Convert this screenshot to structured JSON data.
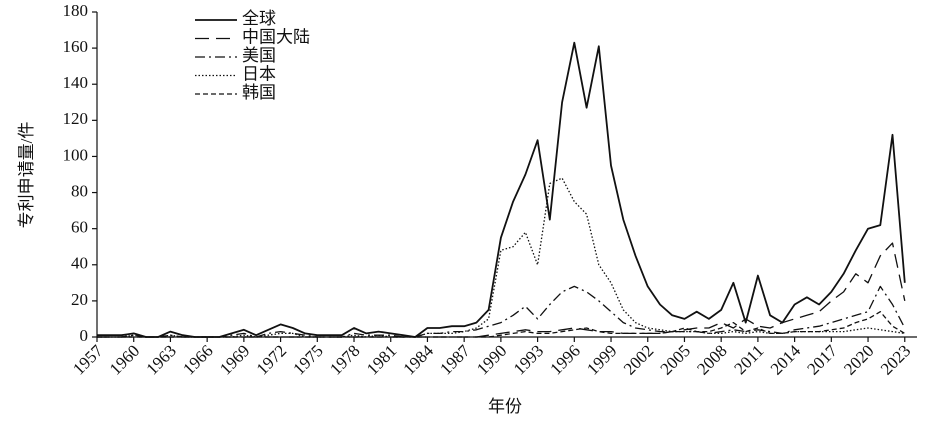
{
  "chart_data": {
    "type": "line",
    "x_label": "年份",
    "y_label": "专利申请量/件",
    "x": [
      1957,
      1958,
      1959,
      1960,
      1961,
      1962,
      1963,
      1964,
      1965,
      1966,
      1967,
      1968,
      1969,
      1970,
      1971,
      1972,
      1973,
      1974,
      1975,
      1976,
      1977,
      1978,
      1979,
      1980,
      1981,
      1982,
      1983,
      1984,
      1985,
      1986,
      1987,
      1988,
      1989,
      1990,
      1991,
      1992,
      1993,
      1994,
      1995,
      1996,
      1997,
      1998,
      1999,
      2000,
      2001,
      2002,
      2003,
      2004,
      2005,
      2006,
      2007,
      2008,
      2009,
      2010,
      2011,
      2012,
      2013,
      2014,
      2015,
      2016,
      2017,
      2018,
      2019,
      2020,
      2021,
      2022,
      2023
    ],
    "xlim": [
      1957,
      2024
    ],
    "xticks": [
      1957,
      1960,
      1963,
      1966,
      1969,
      1972,
      1975,
      1978,
      1981,
      1984,
      1987,
      1990,
      1993,
      1996,
      1999,
      2002,
      2005,
      2008,
      2011,
      2014,
      2017,
      2020,
      2023
    ],
    "ylim": [
      0,
      180
    ],
    "yticks": [
      0,
      20,
      40,
      60,
      80,
      100,
      120,
      140,
      160,
      180
    ],
    "legend": "upper-left",
    "series": [
      {
        "name": "全球",
        "color": "#111111",
        "dash": "none",
        "values": [
          1,
          1,
          1,
          2,
          0,
          0,
          3,
          1,
          0,
          0,
          0,
          2,
          4,
          1,
          4,
          7,
          5,
          2,
          1,
          1,
          1,
          5,
          2,
          3,
          2,
          1,
          0,
          5,
          5,
          6,
          6,
          8,
          15,
          55,
          75,
          90,
          109,
          65,
          130,
          163,
          127,
          161,
          95,
          65,
          45,
          28,
          18,
          12,
          10,
          14,
          10,
          15,
          30,
          8,
          34,
          12,
          8,
          18,
          22,
          18,
          25,
          35,
          48,
          60,
          62,
          112,
          30
        ]
      },
      {
        "name": "中国大陆",
        "color": "#111111",
        "dash": "14,7",
        "values": [
          0,
          0,
          0,
          0,
          0,
          0,
          0,
          0,
          0,
          0,
          0,
          0,
          0,
          0,
          0,
          0,
          0,
          0,
          0,
          0,
          0,
          0,
          0,
          0,
          0,
          0,
          0,
          0,
          0,
          0,
          0,
          0,
          1,
          2,
          3,
          4,
          3,
          3,
          4,
          5,
          4,
          3,
          3,
          2,
          2,
          2,
          2,
          3,
          4,
          5,
          5,
          8,
          5,
          10,
          6,
          5,
          8,
          10,
          12,
          14,
          20,
          25,
          35,
          30,
          45,
          52,
          20
        ]
      },
      {
        "name": "美国",
        "color": "#111111",
        "dash": "10,4,2,4",
        "values": [
          0,
          0,
          0,
          1,
          0,
          0,
          1,
          0,
          0,
          0,
          0,
          1,
          2,
          0,
          2,
          3,
          2,
          1,
          0,
          0,
          0,
          2,
          1,
          1,
          1,
          0,
          0,
          2,
          2,
          3,
          3,
          4,
          6,
          8,
          12,
          17,
          10,
          18,
          25,
          28,
          25,
          20,
          14,
          8,
          5,
          4,
          3,
          3,
          3,
          3,
          2,
          3,
          4,
          3,
          4,
          3,
          2,
          4,
          5,
          6,
          8,
          10,
          12,
          14,
          28,
          18,
          5
        ]
      },
      {
        "name": "日本",
        "color": "#111111",
        "dash": "1.5,2",
        "values": [
          0,
          0,
          0,
          1,
          0,
          0,
          1,
          0,
          0,
          0,
          0,
          0,
          1,
          0,
          1,
          2,
          2,
          0,
          0,
          0,
          0,
          1,
          0,
          1,
          0,
          0,
          0,
          2,
          2,
          2,
          3,
          5,
          10,
          48,
          50,
          58,
          40,
          85,
          88,
          75,
          68,
          40,
          30,
          15,
          8,
          5,
          4,
          3,
          3,
          3,
          2,
          2,
          3,
          2,
          3,
          2,
          2,
          3,
          3,
          3,
          3,
          3,
          4,
          5,
          4,
          3,
          2
        ]
      },
      {
        "name": "韩国",
        "color": "#111111",
        "dash": "5,3",
        "values": [
          0,
          0,
          0,
          0,
          0,
          0,
          0,
          0,
          0,
          0,
          0,
          0,
          0,
          0,
          0,
          0,
          0,
          0,
          0,
          0,
          0,
          0,
          0,
          0,
          0,
          0,
          0,
          0,
          0,
          0,
          0,
          0,
          0,
          1,
          2,
          3,
          2,
          2,
          3,
          4,
          5,
          3,
          2,
          2,
          2,
          2,
          2,
          3,
          5,
          3,
          3,
          5,
          8,
          3,
          5,
          2,
          2,
          3,
          3,
          3,
          4,
          5,
          8,
          10,
          14,
          6,
          2
        ]
      }
    ]
  }
}
